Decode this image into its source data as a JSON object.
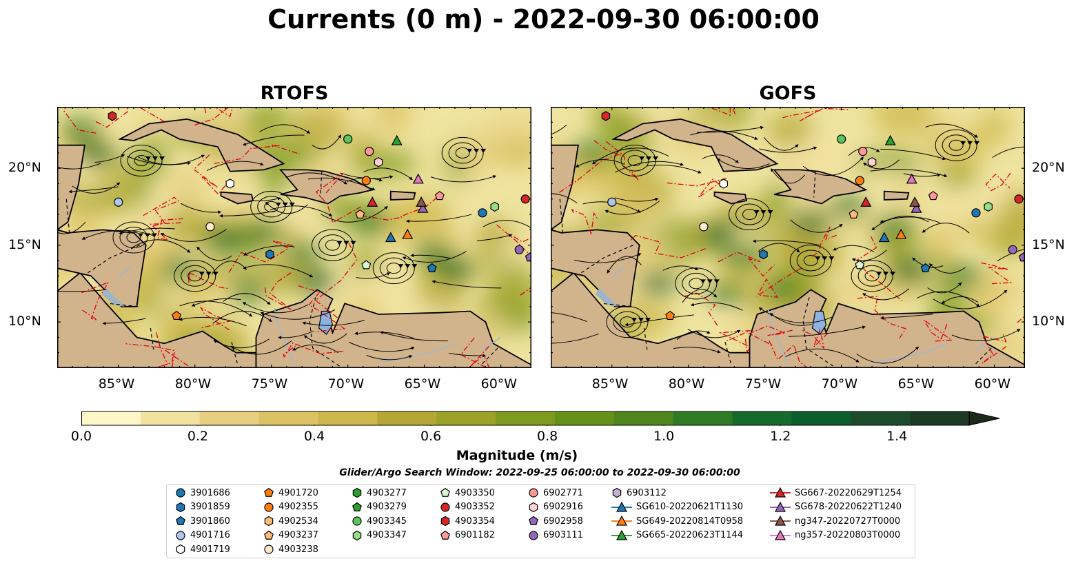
{
  "title": "Currents (0 m) - 2022-09-30 06:00:00",
  "panels": [
    {
      "title": "RTOFS",
      "name": "rtofs"
    },
    {
      "title": "GOFS",
      "name": "gofs"
    }
  ],
  "lon_ticks": [
    "85°W",
    "80°W",
    "75°W",
    "70°W",
    "65°W",
    "60°W"
  ],
  "lat_ticks": [
    "20°N",
    "15°N",
    "10°N"
  ],
  "map_extent": {
    "lon": [
      -89,
      -58
    ],
    "lat": [
      7,
      24
    ]
  },
  "colorbar": {
    "label": "Magnitude (m/s)",
    "ticks": [
      "0.0",
      "0.2",
      "0.4",
      "0.6",
      "0.8",
      "1.0",
      "1.2",
      "1.4"
    ],
    "range": [
      0,
      1.5
    ],
    "colors": [
      "#fdf6c6",
      "#f2e2a0",
      "#e6cf7f",
      "#dcc262",
      "#ccb84a",
      "#b4a735",
      "#9ba227",
      "#7f9b1e",
      "#669119",
      "#4e861d",
      "#2f7a25",
      "#176a2e",
      "#0d5e2d",
      "#1c4b2c",
      "#1d3a24",
      "#1a2a1a"
    ]
  },
  "search_window": "Glider/Argo Search Window: 2022-09-25 06:00:00 to 2022-09-30 06:00:00",
  "legend": [
    {
      "label": "3901686",
      "shape": "circle",
      "color": "#1f77b4"
    },
    {
      "label": "3901859",
      "shape": "hexagon",
      "color": "#1f77b4"
    },
    {
      "label": "3901860",
      "shape": "pentagon",
      "color": "#1f77b4"
    },
    {
      "label": "4901716",
      "shape": "circle",
      "color": "#aec7e8"
    },
    {
      "label": "4901719",
      "shape": "hexagon",
      "color": "#ffffff"
    },
    {
      "label": "4901720",
      "shape": "pentagon",
      "color": "#ff7f0e"
    },
    {
      "label": "4902355",
      "shape": "circle",
      "color": "#ff7f0e"
    },
    {
      "label": "4902534",
      "shape": "hexagon",
      "color": "#ffbb78"
    },
    {
      "label": "4903237",
      "shape": "pentagon",
      "color": "#ffbb78"
    },
    {
      "label": "4903238",
      "shape": "circle",
      "color": "#ffe9cf"
    },
    {
      "label": "4903277",
      "shape": "hexagon",
      "color": "#2ca02c"
    },
    {
      "label": "4903279",
      "shape": "pentagon",
      "color": "#2ca02c"
    },
    {
      "label": "4903345",
      "shape": "circle",
      "color": "#5cc65c"
    },
    {
      "label": "4903347",
      "shape": "hexagon",
      "color": "#98df8a"
    },
    {
      "label": "4903350",
      "shape": "pentagon",
      "color": "#d9f5d2"
    },
    {
      "label": "4903352",
      "shape": "circle",
      "color": "#d62728"
    },
    {
      "label": "4903354",
      "shape": "hexagon",
      "color": "#d62728"
    },
    {
      "label": "6901182",
      "shape": "pentagon",
      "color": "#ff9896"
    },
    {
      "label": "6902771",
      "shape": "circle",
      "color": "#ff9896"
    },
    {
      "label": "6902916",
      "shape": "hexagon",
      "color": "#ffd3d1"
    },
    {
      "label": "6902958",
      "shape": "pentagon",
      "color": "#9467bd"
    },
    {
      "label": "6903111",
      "shape": "circle",
      "color": "#9467bd"
    },
    {
      "label": "6903112",
      "shape": "hexagon",
      "color": "#c5b0d5"
    },
    {
      "label": "SG610-20220621T1130",
      "shape": "triangle-line",
      "color": "#1f77b4"
    },
    {
      "label": "SG649-20220814T0958",
      "shape": "triangle-line",
      "color": "#ff7f0e"
    },
    {
      "label": "SG665-20220623T1144",
      "shape": "triangle-line",
      "color": "#2ca02c"
    },
    {
      "label": "SG667-20220629T1254",
      "shape": "triangle-line",
      "color": "#d62728"
    },
    {
      "label": "SG678-20220622T1240",
      "shape": "triangle-line",
      "color": "#9467bd"
    },
    {
      "label": "ng347-20220727T0000",
      "shape": "triangle-line",
      "color": "#8c564b"
    },
    {
      "label": "ng357-20220803T0000",
      "shape": "triangle-line",
      "color": "#e377c2"
    }
  ],
  "markers": [
    {
      "label": "3901686",
      "lon": -61.2,
      "lat": 17.1
    },
    {
      "label": "3901859",
      "lon": -75.1,
      "lat": 14.4
    },
    {
      "label": "3901860",
      "lon": -64.5,
      "lat": 13.5
    },
    {
      "label": "4901716",
      "lon": -85.0,
      "lat": 17.8
    },
    {
      "label": "4901719",
      "lon": -77.7,
      "lat": 19.0
    },
    {
      "label": "4903238",
      "lon": -79.0,
      "lat": 16.2
    },
    {
      "label": "4901720",
      "lon": -81.2,
      "lat": 10.4
    },
    {
      "label": "4902355",
      "lon": -68.8,
      "lat": 19.2
    },
    {
      "label": "4903237",
      "lon": -69.2,
      "lat": 17.0
    },
    {
      "label": "4903345",
      "lon": -70.0,
      "lat": 21.9
    },
    {
      "label": "6902771",
      "lon": -68.6,
      "lat": 21.1
    },
    {
      "label": "6902916",
      "lon": -68.0,
      "lat": 20.4
    },
    {
      "label": "4903350",
      "lon": -68.8,
      "lat": 13.7
    },
    {
      "label": "4903347",
      "lon": -60.4,
      "lat": 17.5
    },
    {
      "label": "4903352",
      "lon": -58.4,
      "lat": 18.0
    },
    {
      "label": "4903354",
      "lon": -85.4,
      "lat": 23.4
    },
    {
      "label": "6901182",
      "lon": -64.0,
      "lat": 18.2
    },
    {
      "label": "6903111",
      "lon": -58.8,
      "lat": 14.7
    },
    {
      "label": "6902958",
      "lon": -58.1,
      "lat": 14.2
    },
    {
      "label": "SG610-20220621T1130",
      "lon": -67.2,
      "lat": 15.5
    },
    {
      "label": "SG649-20220814T0958",
      "lon": -66.1,
      "lat": 15.7
    },
    {
      "label": "SG665-20220623T1144",
      "lon": -66.8,
      "lat": 21.8
    },
    {
      "label": "SG667-20220629T1254",
      "lon": -68.4,
      "lat": 17.8
    },
    {
      "label": "SG678-20220622T1240",
      "lon": -65.1,
      "lat": 17.4
    },
    {
      "label": "ng347-20220727T0000",
      "lon": -65.2,
      "lat": 17.8
    },
    {
      "label": "ng357-20220803T0000",
      "lon": -65.4,
      "lat": 19.3
    }
  ]
}
